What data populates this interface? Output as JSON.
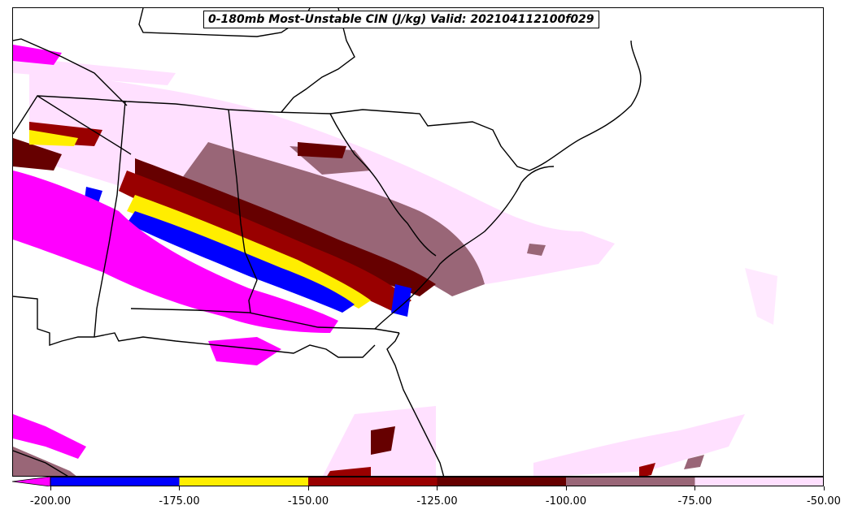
{
  "title": "0-180mb Most-Unstable CIN (J/kg) Valid: 202104112100f029",
  "colorbar": {
    "extend": "min",
    "levels": [
      -200,
      -175,
      -150,
      -125,
      -100,
      -75,
      -50
    ],
    "tick_labels": [
      "-200.00",
      "-175.00",
      "-150.00",
      "-125.00",
      "-100.00",
      "-75.00",
      "-50.00"
    ],
    "colors": [
      "#ff00ff",
      "#0000ff",
      "#ffee00",
      "#990000",
      "#660000",
      "#996677",
      "#ffe0ff"
    ]
  },
  "icons": {
    "map": "contour-map"
  }
}
